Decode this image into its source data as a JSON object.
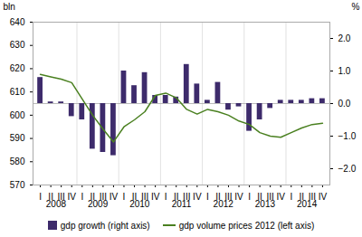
{
  "chart_data": {
    "type": "bar",
    "categories": [
      "I",
      "II",
      "III",
      "IV",
      "I",
      "II",
      "III",
      "IV",
      "I",
      "II",
      "III",
      "IV",
      "I",
      "II",
      "III",
      "IV",
      "I",
      "II",
      "III",
      "IV",
      "I",
      "II",
      "III",
      "IV",
      "I",
      "II",
      "III",
      "IV"
    ],
    "groups": [
      2008,
      2008,
      2008,
      2008,
      2009,
      2009,
      2009,
      2009,
      2010,
      2010,
      2010,
      2010,
      2011,
      2011,
      2011,
      2011,
      2012,
      2012,
      2012,
      2012,
      2013,
      2013,
      2013,
      2013,
      2014,
      2014,
      2014,
      2014
    ],
    "ylabel": "bln",
    "y2label": "%",
    "ylim": [
      570,
      640
    ],
    "yticks": [
      570,
      580,
      590,
      600,
      610,
      620,
      630,
      640
    ],
    "y2lim": [
      -2.5,
      2.5
    ],
    "y2ticks": [
      -2,
      -1,
      0,
      1,
      2
    ],
    "legend": "bottom",
    "series": [
      {
        "name": "gdp growth (right axis)",
        "type": "bar",
        "color": "#3d2b6b",
        "axis": "y2",
        "values": [
          0.8,
          0.05,
          0.05,
          -0.4,
          -0.5,
          -1.4,
          -1.5,
          -1.6,
          1.0,
          0.55,
          0.95,
          0.25,
          0.25,
          0.2,
          1.2,
          0.6,
          0.1,
          0.65,
          -0.2,
          -0.1,
          -0.85,
          -0.5,
          -0.15,
          0.1,
          0.1,
          0.1,
          0.15,
          0.15
        ]
      },
      {
        "name": "gdp volume prices 2012 (left axis)",
        "type": "line",
        "color": "#4a8020",
        "axis": "y",
        "values": [
          617.5,
          616.5,
          615.5,
          614.0,
          607.0,
          600.0,
          594.0,
          588.5,
          595.0,
          598.0,
          601.5,
          608.5,
          609.5,
          607.5,
          602.5,
          600.5,
          602.5,
          601.5,
          600.0,
          597.5,
          596.0,
          592.5,
          591.0,
          590.5,
          592.5,
          594.5,
          596.0,
          596.5
        ]
      }
    ]
  }
}
